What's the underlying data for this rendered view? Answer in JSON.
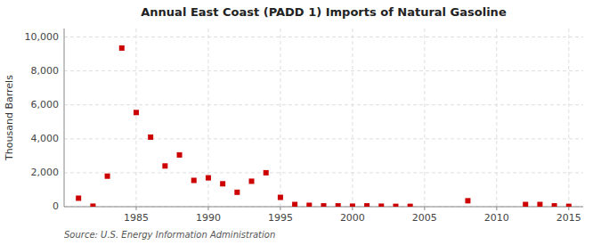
{
  "chart_data": {
    "type": "scatter",
    "title": "Annual East Coast (PADD 1) Imports of Natural Gasoline",
    "ylabel": "Thousand Barrels",
    "annotations": [
      "Source: U.S. Energy Information Administration"
    ],
    "color": "#cc0000",
    "marker": "square",
    "grid": true,
    "xlim": [
      1980,
      2016
    ],
    "ylim": [
      0,
      10500
    ],
    "xticks": [
      1985,
      1990,
      1995,
      2000,
      2005,
      2010,
      2015
    ],
    "yticks": [
      0,
      {
        "value": 2000,
        "label": "2,000"
      },
      {
        "value": 4000,
        "label": "4,000"
      },
      {
        "value": 6000,
        "label": "6,000"
      },
      {
        "value": 8000,
        "label": "8,000"
      },
      {
        "value": 10000,
        "label": "10,000"
      }
    ],
    "x": [
      1981,
      1982,
      1983,
      1984,
      1985,
      1986,
      1987,
      1988,
      1989,
      1990,
      1991,
      1992,
      1993,
      1994,
      1995,
      1996,
      1997,
      1998,
      1999,
      2000,
      2001,
      2002,
      2003,
      2004,
      2008,
      2012,
      2013,
      2014,
      2015
    ],
    "values": [
      500,
      30,
      1800,
      9350,
      5550,
      4100,
      2400,
      3050,
      1550,
      1700,
      1350,
      850,
      1500,
      2000,
      550,
      130,
      80,
      50,
      50,
      30,
      50,
      30,
      20,
      20,
      350,
      130,
      130,
      50,
      20
    ]
  }
}
